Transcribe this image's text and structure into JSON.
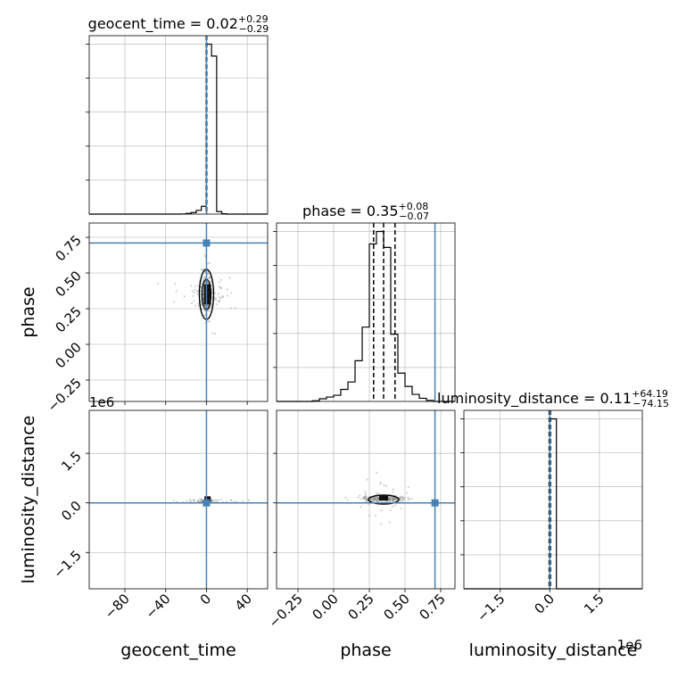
{
  "chart_data": [
    {
      "type": "histogram",
      "panel": "geocent_time-1d",
      "title_param": "geocent_time",
      "title_value": "0.02",
      "title_plus": "+0.29",
      "title_minus": "−0.29",
      "xlim": [
        -115,
        60
      ],
      "yticks": 6,
      "bin_edges": [
        -115,
        -110,
        -105,
        -100,
        -95,
        -90,
        -85,
        -80,
        -75,
        -70,
        -65,
        -60,
        -55,
        -50,
        -45,
        -40,
        -35,
        -30,
        -25,
        -20,
        -15,
        -10,
        -5,
        0,
        5,
        10,
        15,
        20,
        25,
        30,
        35,
        40,
        45,
        50,
        55,
        60
      ],
      "counts": [
        0,
        0,
        0,
        0,
        0,
        0,
        0,
        0,
        0,
        0,
        0,
        0,
        0,
        0,
        0,
        0,
        0,
        0,
        0.001,
        0.004,
        0.009,
        0.022,
        0.046,
        1.0,
        0.93,
        0.015,
        0.002,
        0,
        0,
        0,
        0,
        0,
        0,
        0,
        0
      ],
      "quantile_lines": [
        -0.27,
        0.02,
        0.31
      ],
      "truth": 0.0
    },
    {
      "type": "histogram",
      "panel": "phase-1d",
      "title_param": "phase",
      "title_value": "0.35",
      "title_plus": "+0.08",
      "title_minus": "−0.07",
      "xlim": [
        -0.4,
        0.85
      ],
      "bin_edges": [
        -0.4,
        -0.35,
        -0.3,
        -0.25,
        -0.2,
        -0.15,
        -0.1,
        -0.05,
        0.0,
        0.05,
        0.1,
        0.15,
        0.2,
        0.25,
        0.3,
        0.35,
        0.4,
        0.45,
        0.5,
        0.55,
        0.6,
        0.65,
        0.7,
        0.75,
        0.8,
        0.85
      ],
      "counts": [
        0,
        0,
        0,
        0,
        0,
        0.004,
        0.015,
        0.025,
        0.035,
        0.068,
        0.11,
        0.23,
        0.42,
        0.89,
        0.96,
        0.87,
        0.38,
        0.16,
        0.085,
        0.04,
        0.018,
        0.006,
        0,
        0,
        0
      ],
      "quantile_lines": [
        0.28,
        0.35,
        0.43
      ],
      "truth": 0.71
    },
    {
      "type": "histogram",
      "panel": "luminosity_distance-1d",
      "title_param": "luminosity_distance",
      "title_value": "0.11",
      "title_plus": "+64.19",
      "title_minus": "−74.15",
      "offset_label": "1e6",
      "xlim": [
        -2.6,
        2.8
      ],
      "bin_edges": [
        -2.6,
        -2.4,
        -2.2,
        -2.0,
        -1.8,
        -1.6,
        -1.4,
        -1.2,
        -1.0,
        -0.8,
        -0.6,
        -0.4,
        -0.2,
        0.0,
        0.2,
        0.4,
        0.6,
        0.8,
        1.0,
        1.2,
        1.4,
        1.6,
        1.8,
        2.0,
        2.2,
        2.4,
        2.6,
        2.8
      ],
      "counts": [
        0,
        0,
        0,
        0,
        0,
        0,
        0,
        0,
        0,
        0,
        0,
        0,
        0.0,
        1.0,
        0,
        0,
        0,
        0,
        0,
        0,
        0,
        0,
        0,
        0,
        0,
        0,
        0
      ],
      "quantile_lines": [
        -0.02,
        0.0,
        0.02
      ],
      "truth": 0.0
    },
    {
      "type": "scatter",
      "panel": "phase-vs-geocent_time",
      "xlabel": "geocent_time",
      "ylabel": "phase",
      "xlim": [
        -115,
        60
      ],
      "ylim": [
        -0.4,
        0.85
      ],
      "xticks": [
        -80,
        -40,
        0,
        40
      ],
      "xtick_labels": [
        "−80",
        "−40",
        "0",
        "40"
      ],
      "yticks": [
        -0.25,
        0.0,
        0.25,
        0.5,
        0.75
      ],
      "ytick_labels": [
        "−0.25",
        "0.00",
        "0.25",
        "0.50",
        "0.75"
      ],
      "center": [
        0.0,
        0.35
      ],
      "spread": [
        6,
        0.07
      ],
      "truth": [
        0.0,
        0.71
      ]
    },
    {
      "type": "scatter",
      "panel": "luminosity_distance-vs-geocent_time",
      "xlim": [
        -115,
        60
      ],
      "ylim": [
        -2.6,
        2.8
      ],
      "yticks": [
        -1.5,
        0.0,
        1.5
      ],
      "ytick_labels": [
        "−1.5",
        "0.0",
        "1.5"
      ],
      "offset_label": "1e6",
      "center": [
        0.0,
        0.1
      ],
      "truth": [
        0.0,
        0.0
      ]
    },
    {
      "type": "scatter",
      "panel": "luminosity_distance-vs-phase",
      "xlim": [
        -0.4,
        0.85
      ],
      "ylim": [
        -2.6,
        2.8
      ],
      "xticks": [
        -0.25,
        0.0,
        0.25,
        0.5,
        0.75
      ],
      "xtick_labels": [
        "−0.25",
        "0.00",
        "0.25",
        "0.50",
        "0.75"
      ],
      "center": [
        0.35,
        0.12
      ],
      "truth": [
        0.71,
        0.0
      ]
    },
    {
      "type": "axis",
      "panel": "bottom-axes",
      "xlabel_left": "geocent_time",
      "xlabel_mid": "phase",
      "xlabel_right": "luminosity_distance",
      "ylabel_left_bottom": "luminosity_distance",
      "xticks_right": [
        -1.5,
        0.0,
        1.5
      ],
      "xtick_labels_right": [
        "−1.5",
        "0.0",
        "1.5"
      ],
      "offset_label_right": "1e6"
    }
  ],
  "colors": {
    "truth": "#4682b4",
    "hist": "#000000",
    "grid": "#b0b0b0",
    "scatter": "#7f7f7f"
  }
}
